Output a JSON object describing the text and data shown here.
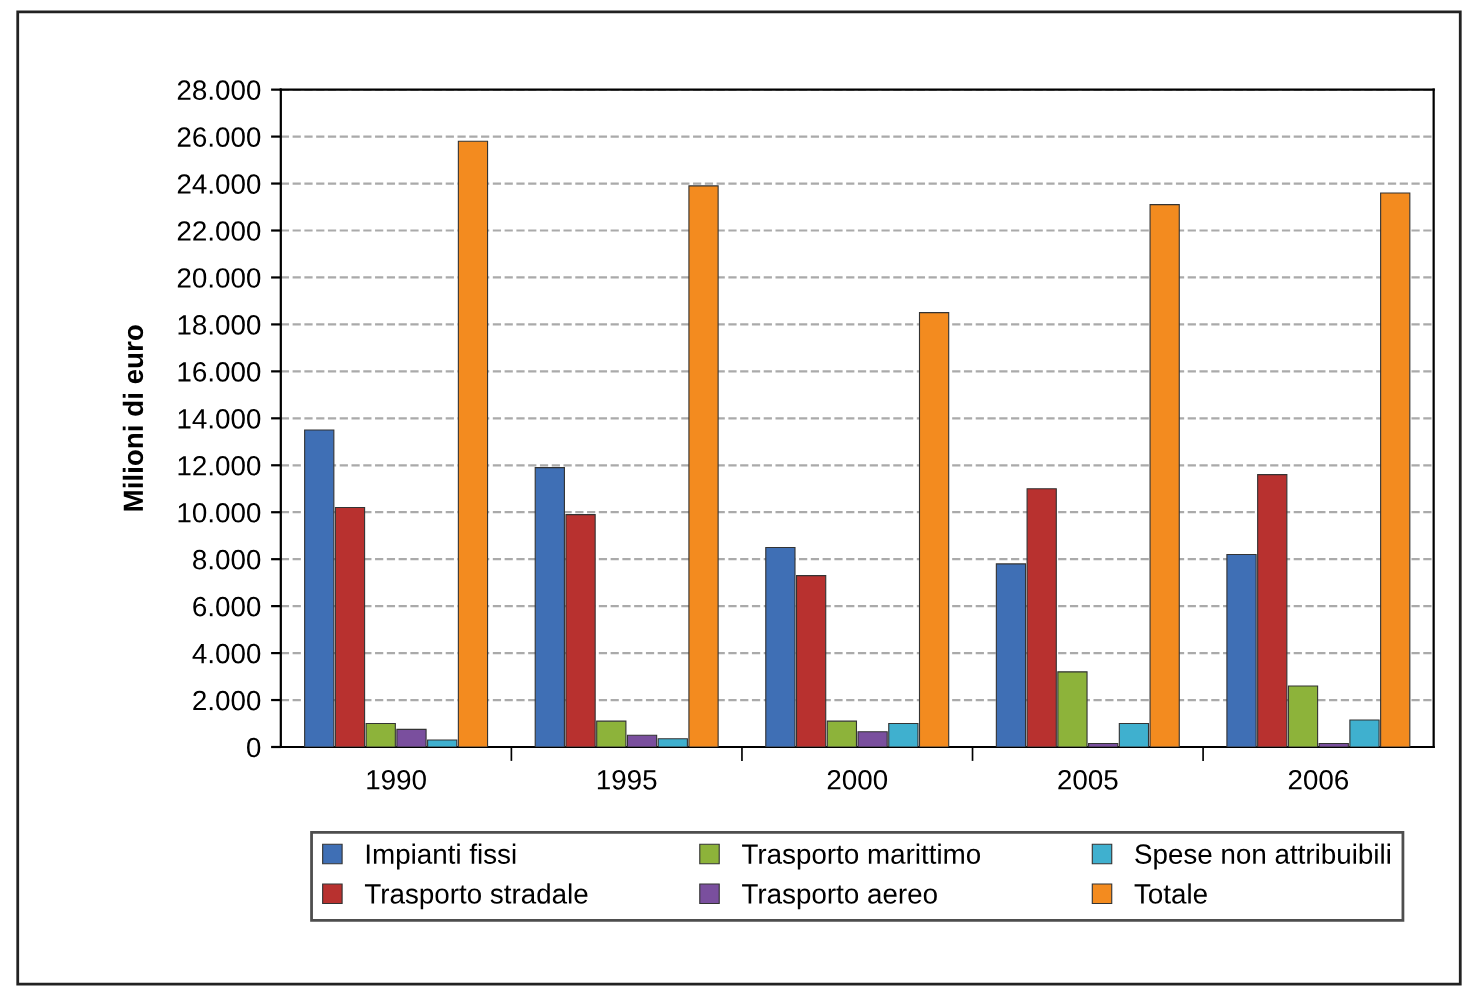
{
  "chart_data": {
    "type": "bar",
    "ylabel": "Milioni di euro",
    "categories": [
      "1990",
      "1995",
      "2000",
      "2005",
      "2006"
    ],
    "series": [
      {
        "name": "Impianti fissi",
        "color": "#3f6fb5",
        "values": [
          13500,
          11900,
          8500,
          7800,
          8200
        ]
      },
      {
        "name": "Trasporto stradale",
        "color": "#b8312f",
        "values": [
          10200,
          9900,
          7300,
          11000,
          11600
        ]
      },
      {
        "name": "Trasporto marittimo",
        "color": "#8db33a",
        "values": [
          1000,
          1100,
          1100,
          3200,
          2600
        ]
      },
      {
        "name": "Trasporto aereo",
        "color": "#7a4f9e",
        "values": [
          750,
          500,
          650,
          150,
          150
        ]
      },
      {
        "name": "Spese non attribuibili",
        "color": "#3fb0cf",
        "values": [
          300,
          350,
          1000,
          1000,
          1150
        ]
      },
      {
        "name": "Totale",
        "color": "#f38b1f",
        "values": [
          25800,
          23900,
          18500,
          23100,
          23600
        ]
      }
    ],
    "ylim": [
      0,
      28000
    ],
    "yticks": [
      {
        "value": 0,
        "label": "0"
      },
      {
        "value": 2000,
        "label": "2.000"
      },
      {
        "value": 4000,
        "label": "4.000"
      },
      {
        "value": 6000,
        "label": "6.000"
      },
      {
        "value": 8000,
        "label": "8.000"
      },
      {
        "value": 10000,
        "label": "10.000"
      },
      {
        "value": 12000,
        "label": "12.000"
      },
      {
        "value": 14000,
        "label": "14.000"
      },
      {
        "value": 16000,
        "label": "16.000"
      },
      {
        "value": 18000,
        "label": "18.000"
      },
      {
        "value": 20000,
        "label": "20.000"
      },
      {
        "value": 22000,
        "label": "22.000"
      },
      {
        "value": 24000,
        "label": "24.000"
      },
      {
        "value": 26000,
        "label": "26.000"
      },
      {
        "value": 28000,
        "label": "28.000"
      }
    ],
    "grid": "y",
    "legend": "bottom"
  }
}
